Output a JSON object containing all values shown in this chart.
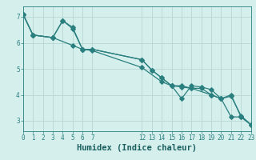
{
  "title": "",
  "xlabel": "Humidex (Indice chaleur)",
  "ylabel": "",
  "bg_color": "#d5efec",
  "line_color": "#2a7f7f",
  "grid_color": "#b8d8d4",
  "series1_x": [
    0,
    1,
    3,
    4,
    5,
    6,
    7,
    12,
    13,
    14,
    15,
    16,
    17,
    18,
    19,
    20,
    21,
    22,
    23
  ],
  "series1_y": [
    7.1,
    6.3,
    6.2,
    6.85,
    6.55,
    5.75,
    5.75,
    5.35,
    4.95,
    4.65,
    4.35,
    4.3,
    4.25,
    4.25,
    4.0,
    3.85,
    3.95,
    3.2,
    2.85
  ],
  "series2_x": [
    0,
    1,
    3,
    4,
    5,
    6,
    7,
    12,
    13,
    14,
    15,
    16,
    17,
    18,
    19,
    20,
    21,
    22,
    23
  ],
  "series2_y": [
    7.1,
    6.3,
    6.2,
    6.85,
    6.6,
    5.75,
    5.75,
    5.35,
    4.95,
    4.65,
    4.35,
    3.85,
    4.35,
    4.3,
    4.2,
    3.85,
    4.0,
    3.15,
    2.85
  ],
  "series3_x": [
    0,
    1,
    3,
    5,
    6,
    7,
    12,
    14,
    15,
    16,
    17,
    19,
    20,
    21,
    22,
    23
  ],
  "series3_y": [
    7.1,
    6.3,
    6.2,
    5.9,
    5.75,
    5.7,
    5.05,
    4.5,
    4.35,
    4.35,
    4.25,
    4.0,
    3.85,
    3.15,
    3.15,
    2.85
  ],
  "xlim": [
    0,
    23
  ],
  "ylim": [
    2.6,
    7.4
  ],
  "xticks": [
    0,
    1,
    2,
    3,
    4,
    5,
    6,
    7,
    12,
    13,
    14,
    15,
    16,
    17,
    18,
    19,
    20,
    21,
    22,
    23
  ],
  "yticks": [
    3,
    4,
    5,
    6,
    7
  ],
  "tick_fontsize": 5.5,
  "xlabel_fontsize": 7.5
}
